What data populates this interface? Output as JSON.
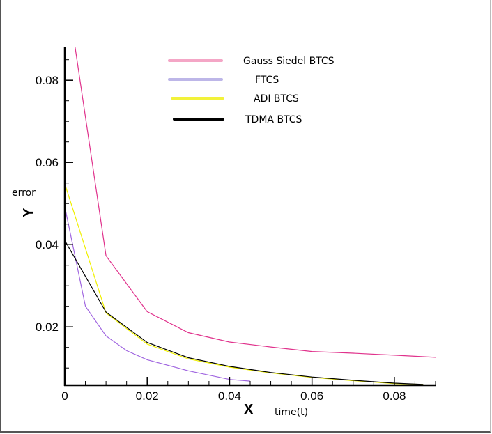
{
  "chart_data": {
    "type": "line",
    "title": "",
    "xlabel": "X",
    "ylabel": "Y",
    "x_annotation": "time(t)",
    "y_annotation": "error",
    "xlim": [
      0,
      0.09
    ],
    "ylim": [
      0.0058,
      0.088
    ],
    "x_ticks": [
      {
        "value": 0,
        "label": "0"
      },
      {
        "value": 0.02,
        "label": "0.02"
      },
      {
        "value": 0.04,
        "label": "0.04"
      },
      {
        "value": 0.06,
        "label": "0.06"
      },
      {
        "value": 0.08,
        "label": "0.08"
      }
    ],
    "y_ticks": [
      {
        "value": 0.02,
        "label": "0.02"
      },
      {
        "value": 0.04,
        "label": "0.04"
      },
      {
        "value": 0.06,
        "label": "0.06"
      },
      {
        "value": 0.08,
        "label": "0.08"
      }
    ],
    "x_minor_step": 0.005,
    "y_minor_step": 0.005,
    "grid": false,
    "legend_position": "top-center",
    "series": [
      {
        "name": "Gauss Siedel BTCS",
        "color": "#e0328c",
        "legend_color": "#f4a6c6",
        "points": [
          [
            0.0025,
            0.088
          ],
          [
            0.01,
            0.0373
          ],
          [
            0.02,
            0.0237
          ],
          [
            0.03,
            0.0186
          ],
          [
            0.04,
            0.0163
          ],
          [
            0.05,
            0.0151
          ],
          [
            0.06,
            0.014
          ],
          [
            0.07,
            0.0136
          ],
          [
            0.08,
            0.0131
          ],
          [
            0.09,
            0.0126
          ]
        ]
      },
      {
        "name": "FTCS",
        "color": "#a066e0",
        "legend_color": "#bdb6e8",
        "points": [
          [
            0,
            0.0492
          ],
          [
            0.005,
            0.025
          ],
          [
            0.01,
            0.0178
          ],
          [
            0.015,
            0.0142
          ],
          [
            0.02,
            0.012
          ],
          [
            0.03,
            0.0093
          ],
          [
            0.04,
            0.0072
          ],
          [
            0.045,
            0.0068
          ]
        ]
      },
      {
        "name": "ADI BTCS",
        "color": "#f0f000",
        "legend_color": "#f2f23a",
        "points": [
          [
            0,
            0.0548
          ],
          [
            0.01,
            0.0234
          ],
          [
            0.02,
            0.0158
          ],
          [
            0.03,
            0.0122
          ],
          [
            0.04,
            0.0102
          ],
          [
            0.05,
            0.0088
          ],
          [
            0.06,
            0.0077
          ],
          [
            0.07,
            0.0069
          ],
          [
            0.08,
            0.0062
          ],
          [
            0.087,
            0.006
          ]
        ]
      },
      {
        "name": "TDMA BTCS",
        "color": "#000000",
        "legend_color": "#000000",
        "points": [
          [
            0,
            0.041
          ],
          [
            0.01,
            0.0236
          ],
          [
            0.02,
            0.0162
          ],
          [
            0.03,
            0.0125
          ],
          [
            0.04,
            0.0104
          ],
          [
            0.05,
            0.0089
          ],
          [
            0.06,
            0.0078
          ],
          [
            0.07,
            0.007
          ],
          [
            0.08,
            0.0063
          ],
          [
            0.087,
            0.006
          ]
        ]
      }
    ]
  }
}
